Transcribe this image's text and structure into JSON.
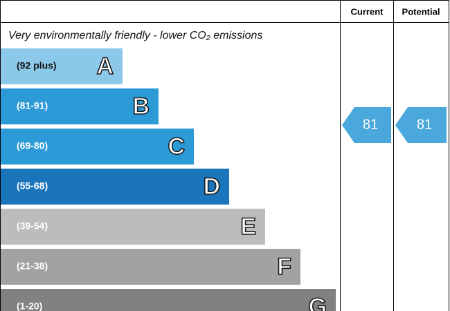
{
  "header": {
    "columns": [
      "Current",
      "Potential"
    ]
  },
  "subtitle": "Very environmentally friendly - lower CO₂ emissions",
  "bands": [
    {
      "range": "(92 plus)",
      "letter": "A"
    },
    {
      "range": "(81-91)",
      "letter": "B"
    },
    {
      "range": "(69-80)",
      "letter": "C"
    },
    {
      "range": "(55-68)",
      "letter": "D"
    },
    {
      "range": "(39-54)",
      "letter": "E"
    },
    {
      "range": "(21-38)",
      "letter": "F"
    },
    {
      "range": "(1-20)",
      "letter": "G"
    }
  ],
  "current": 81,
  "potential": 81
}
